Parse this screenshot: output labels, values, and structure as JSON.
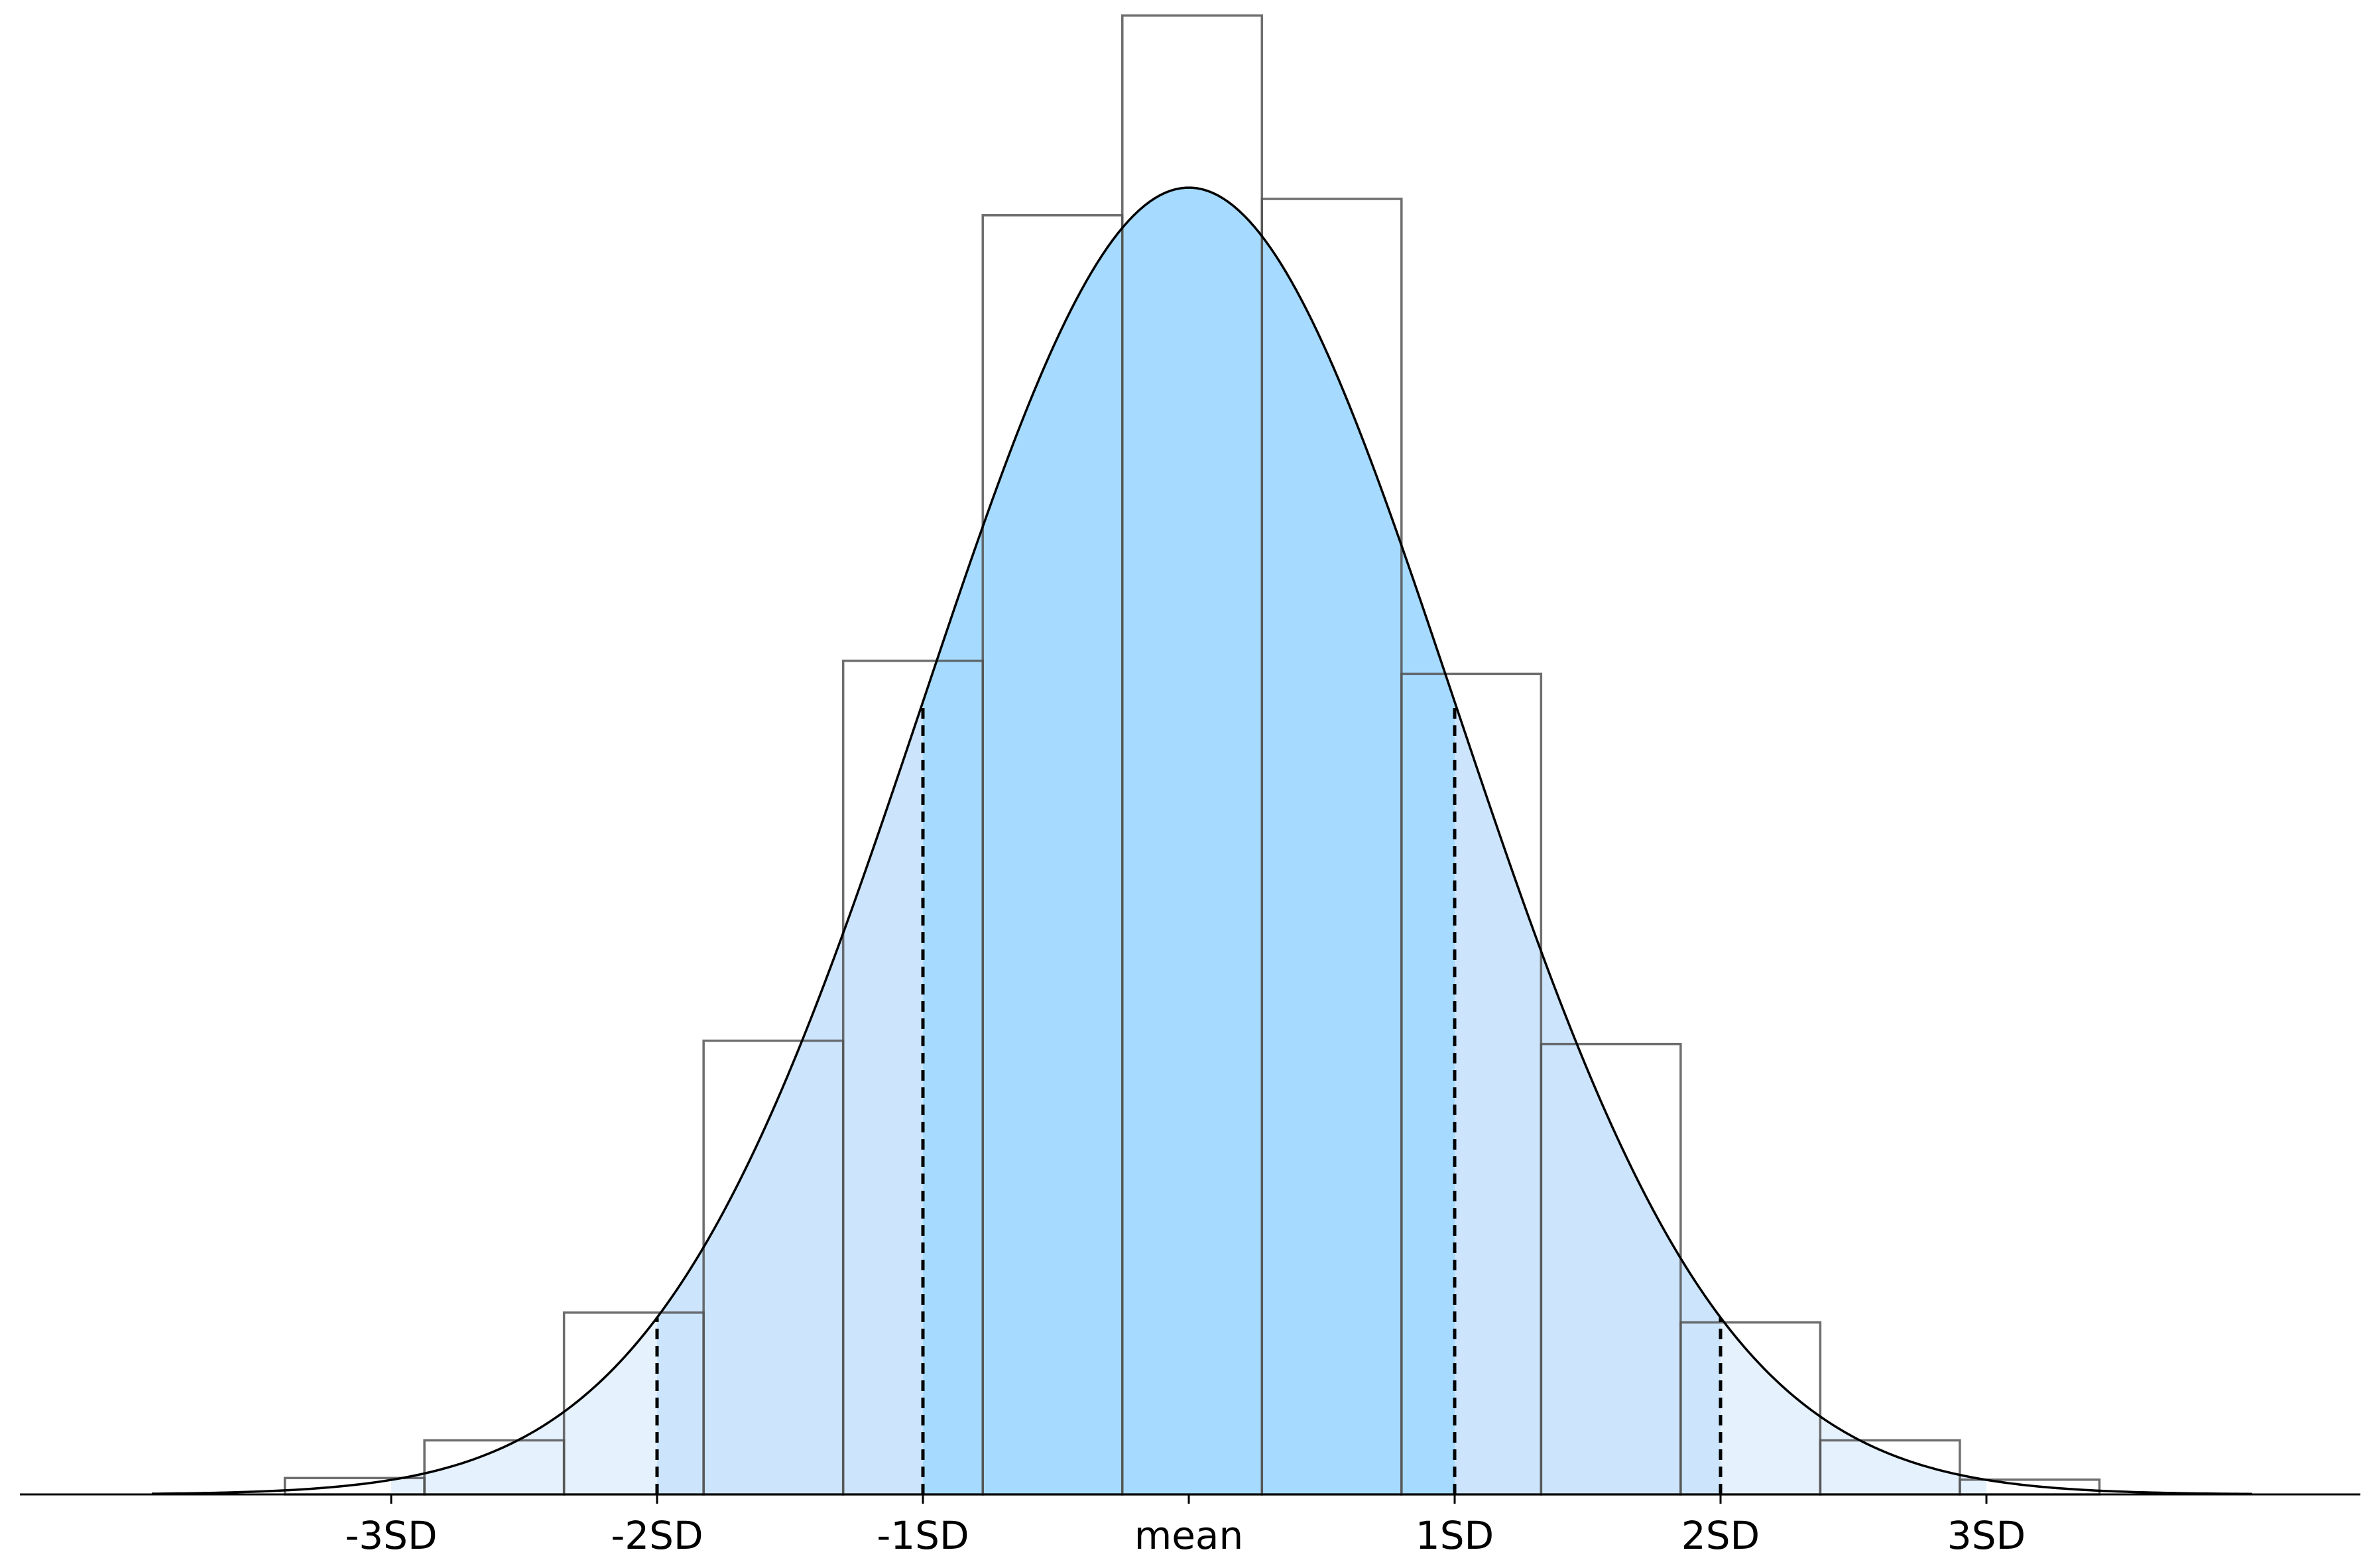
{
  "chart_data": {
    "type": "area",
    "title": "",
    "xlabel": "",
    "ylabel": "",
    "x_ticks": [
      {
        "x": -3,
        "label": "-3SD"
      },
      {
        "x": -2,
        "label": "-2SD"
      },
      {
        "x": -1,
        "label": "-1SD"
      },
      {
        "x": 0,
        "label": "mean"
      },
      {
        "x": 1,
        "label": "1SD"
      },
      {
        "x": 2,
        "label": "2SD"
      },
      {
        "x": 3,
        "label": "3SD"
      }
    ],
    "xlim": [
      -4.4,
      4.4
    ],
    "ylim": [
      0,
      0.45
    ],
    "grid": false,
    "curve": {
      "distribution": "normal",
      "mean": 0,
      "sd": 1,
      "x_range": [
        -3.9,
        4.0
      ]
    },
    "histogram": {
      "bin_edges": [
        -3.4,
        -2.875,
        -2.35,
        -1.825,
        -1.3,
        -0.775,
        -0.25,
        0.275,
        0.8,
        1.325,
        1.85,
        2.375,
        2.9,
        3.425
      ],
      "heights": [
        0.005,
        0.0165,
        0.0555,
        0.1385,
        0.2545,
        0.3905,
        0.4515,
        0.3955,
        0.2505,
        0.1375,
        0.0525,
        0.0165,
        0.0045
      ]
    },
    "shaded_regions": [
      {
        "from": -1,
        "to": 1,
        "color": "#a6dbff"
      },
      {
        "from": -2,
        "to": -1,
        "color": "#cce5fc"
      },
      {
        "from": 1,
        "to": 2,
        "color": "#cce5fc"
      },
      {
        "from": -3,
        "to": -2,
        "color": "#e5f1fd"
      },
      {
        "from": 2,
        "to": 3,
        "color": "#e5f1fd"
      }
    ],
    "dashed_sd_lines": [
      -2,
      -1,
      1,
      2
    ]
  }
}
